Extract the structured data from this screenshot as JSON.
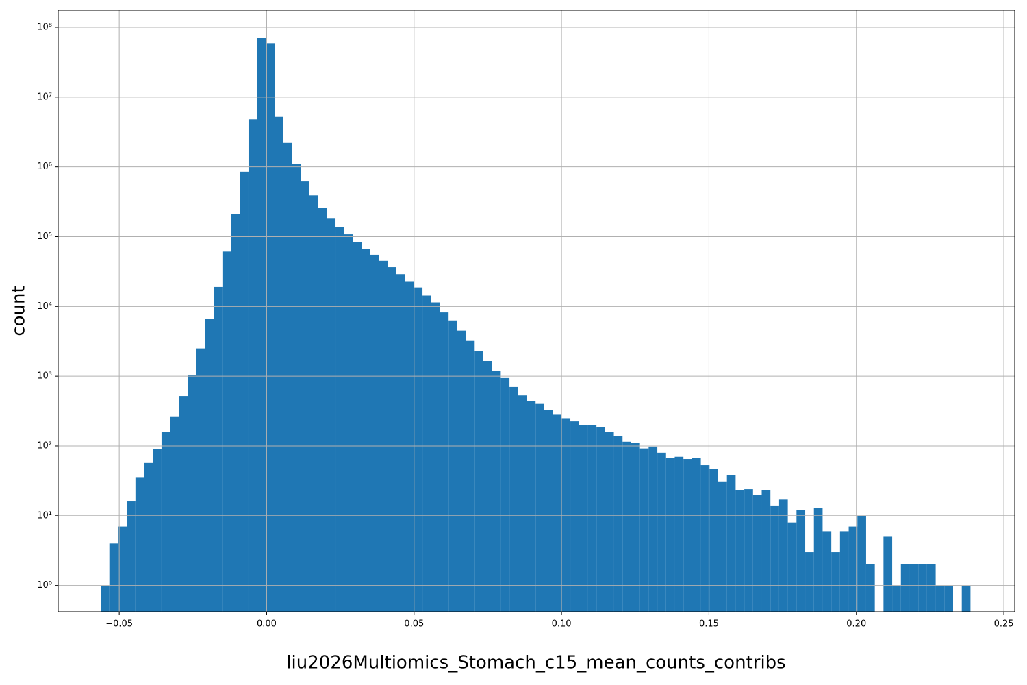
{
  "chart_data": {
    "type": "histogram",
    "x_label": "liu2026Multiomics_Stomach_c15_mean_counts_contribs",
    "y_label": "count",
    "color": "#1f77b4",
    "grid": true,
    "log_y": true,
    "bins": [
      -0.0563,
      -0.05335,
      -0.0504,
      -0.04745,
      -0.0445,
      -0.04155,
      -0.0386,
      -0.03565,
      -0.0327,
      -0.02975,
      -0.0268,
      -0.02385,
      -0.0209,
      -0.01795,
      -0.015,
      -0.01205,
      -0.0091,
      -0.00615,
      -0.0032,
      -0.00025,
      0.0027,
      0.00565,
      0.0086,
      0.01155,
      0.0145,
      0.01745,
      0.0204,
      0.02335,
      0.0263,
      0.02925,
      0.0322,
      0.03515,
      0.0381,
      0.04105,
      0.044,
      0.04695,
      0.0499,
      0.05285,
      0.0558,
      0.05875,
      0.0617,
      0.06465,
      0.0676,
      0.07055,
      0.0735,
      0.07645,
      0.0794,
      0.08235,
      0.0853,
      0.08825,
      0.0912,
      0.09415,
      0.0971,
      0.10005,
      0.103,
      0.10595,
      0.1089,
      0.11185,
      0.1148,
      0.11775,
      0.1207,
      0.12365,
      0.1266,
      0.12955,
      0.1325,
      0.13545,
      0.1384,
      0.14135,
      0.1443,
      0.14725,
      0.1502,
      0.15315,
      0.1561,
      0.15905,
      0.162,
      0.16495,
      0.1679,
      0.17085,
      0.1738,
      0.17675,
      0.1797,
      0.18265,
      0.1856,
      0.18855,
      0.1915,
      0.19445,
      0.1974,
      0.20035,
      0.2033,
      0.20625,
      0.2092,
      0.21215,
      0.2151,
      0.21805,
      0.221,
      0.22395,
      0.2269,
      0.22985,
      0.2328,
      0.23575,
      0.2387
    ],
    "values": [
      1,
      4,
      7,
      16,
      35,
      57,
      90,
      158,
      260,
      520,
      1050,
      2500,
      6700,
      19000,
      61000,
      210000,
      850000,
      4800000,
      70000000,
      59000000,
      5200000,
      2200000,
      1100000,
      630000,
      390000,
      260000,
      185000,
      138000,
      108000,
      84000,
      67000,
      55000,
      45000,
      36500,
      29000,
      23000,
      18700,
      14300,
      11400,
      8200,
      6300,
      4500,
      3200,
      2300,
      1650,
      1200,
      940,
      700,
      530,
      440,
      400,
      325,
      280,
      250,
      225,
      198,
      200,
      185,
      158,
      140,
      115,
      110,
      92,
      98,
      80,
      67,
      70,
      65,
      67,
      53,
      47,
      31,
      38,
      23,
      24,
      20,
      23,
      14,
      17,
      8,
      12,
      3,
      13,
      6,
      3,
      6,
      7,
      10,
      2,
      0,
      5,
      1,
      2,
      2,
      2,
      2,
      1,
      1,
      0,
      1
    ],
    "xlim": [
      -0.0707,
      0.2537
    ],
    "ylim": [
      0.42,
      176000000
    ],
    "xticks": [
      {
        "value": -0.05,
        "label": "−0.05"
      },
      {
        "value": 0,
        "label": "0.00"
      },
      0.05,
      {
        "value": 0.1,
        "label": "0.10"
      },
      0.15,
      {
        "value": 0.2,
        "label": "0.20"
      },
      0.25
    ],
    "yticks": [
      {
        "value": 1,
        "label": "10⁰"
      },
      {
        "value": 10,
        "label": "10¹"
      },
      {
        "value": 100,
        "label": "10²"
      },
      {
        "value": 1000,
        "label": "10³"
      },
      {
        "value": 10000,
        "label": "10⁴"
      },
      {
        "value": 100000,
        "label": "10⁵"
      },
      {
        "value": 1000000,
        "label": "10⁶"
      },
      {
        "value": 10000000,
        "label": "10⁷"
      },
      {
        "value": 100000000,
        "label": "10⁸"
      }
    ]
  }
}
